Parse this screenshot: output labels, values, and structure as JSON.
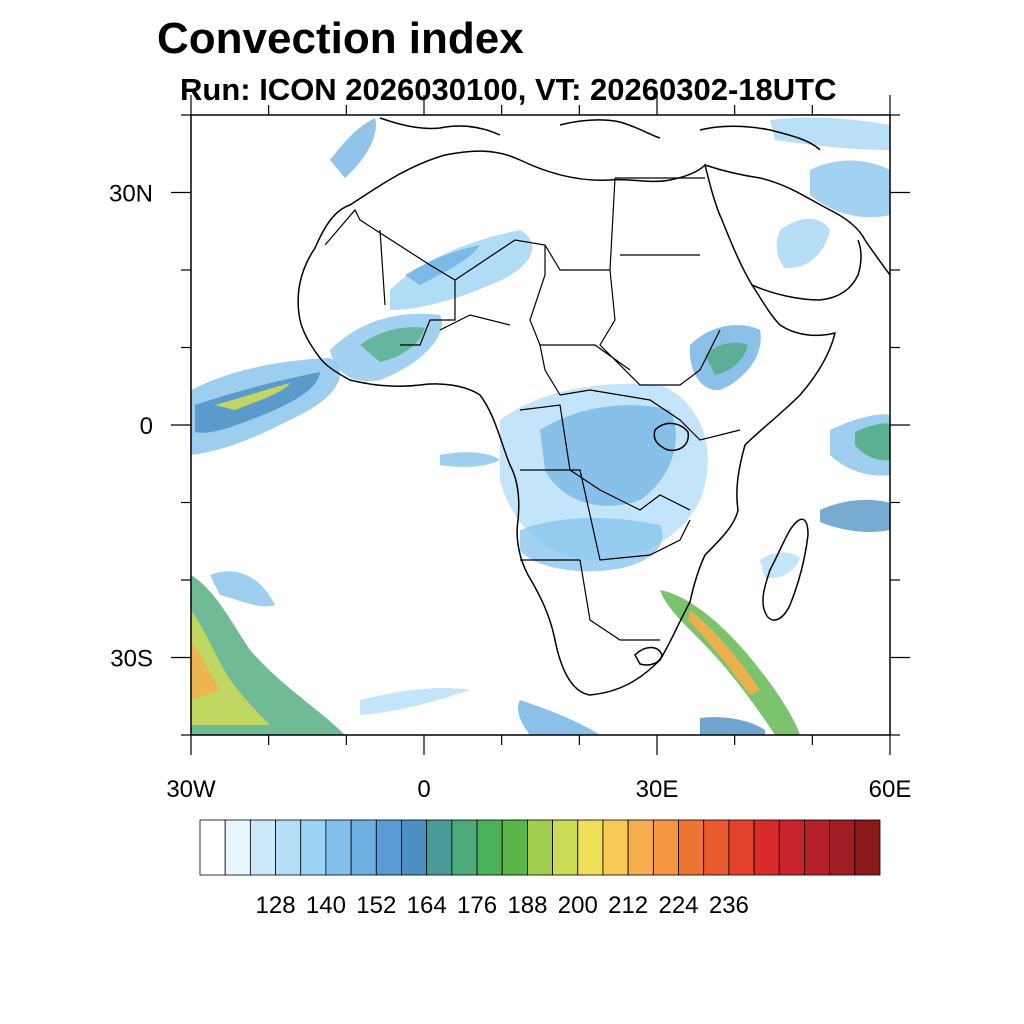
{
  "title": "Convection index",
  "subtitle": "Run: ICON 2026030100,  VT: 20260302-18UTC",
  "map": {
    "lon_range": [
      -30,
      60
    ],
    "lat_range": [
      -40,
      40
    ],
    "lon_ticks": [
      {
        "value": -30,
        "label": "30W"
      },
      {
        "value": 0,
        "label": "0"
      },
      {
        "value": 30,
        "label": "30E"
      },
      {
        "value": 60,
        "label": "60E"
      }
    ],
    "lat_ticks": [
      {
        "value": 30,
        "label": "30N"
      },
      {
        "value": 0,
        "label": "0"
      },
      {
        "value": -30,
        "label": "30S"
      }
    ]
  },
  "colorbar": {
    "labels": [
      "128",
      "140",
      "152",
      "164",
      "176",
      "188",
      "200",
      "212",
      "224",
      "236"
    ],
    "colors": [
      "#ffffff",
      "#e9f5fd",
      "#cde9f9",
      "#b5dff7",
      "#9dd3f4",
      "#84c2ec",
      "#6eb0e2",
      "#5a9bd5",
      "#4b8fc3",
      "#4a9a9a",
      "#4caa7a",
      "#4bb159",
      "#5ab548",
      "#a3cd4f",
      "#cddc57",
      "#efe05a",
      "#f8c956",
      "#f7ae4c",
      "#f4953f",
      "#ee7633",
      "#e95b2e",
      "#e3412b",
      "#d82b2c",
      "#c8232d",
      "#b51f2a",
      "#a11c22",
      "#8a1a1a"
    ]
  },
  "color_accent": "#000000"
}
